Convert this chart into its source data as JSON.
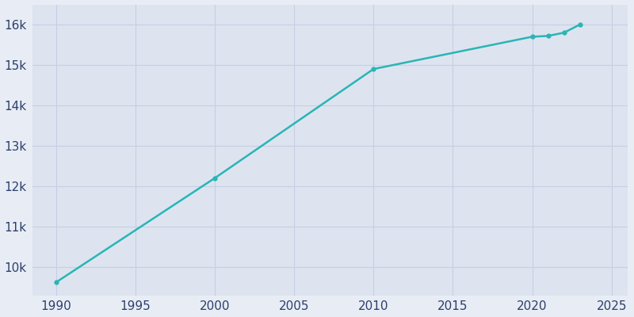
{
  "years": [
    1990,
    2000,
    2010,
    2020,
    2021,
    2022,
    2023
  ],
  "population": [
    9620,
    12200,
    14900,
    15700,
    15720,
    15800,
    16000
  ],
  "line_color": "#2ab5b5",
  "background_color": "#e8edf5",
  "plot_background_color": "#dde4f0",
  "tick_label_color": "#2c3e6b",
  "grid_color": "#c5d0e3",
  "xlim": [
    1988.5,
    2026
  ],
  "ylim": [
    9300,
    16500
  ],
  "xticks": [
    1990,
    1995,
    2000,
    2005,
    2010,
    2015,
    2020,
    2025
  ],
  "ytick_values": [
    10000,
    11000,
    12000,
    13000,
    14000,
    15000,
    16000
  ],
  "ytick_labels": [
    "10k",
    "11k",
    "12k",
    "13k",
    "14k",
    "15k",
    "16k"
  ],
  "line_width": 1.8,
  "marker": "o",
  "marker_size": 3.5
}
